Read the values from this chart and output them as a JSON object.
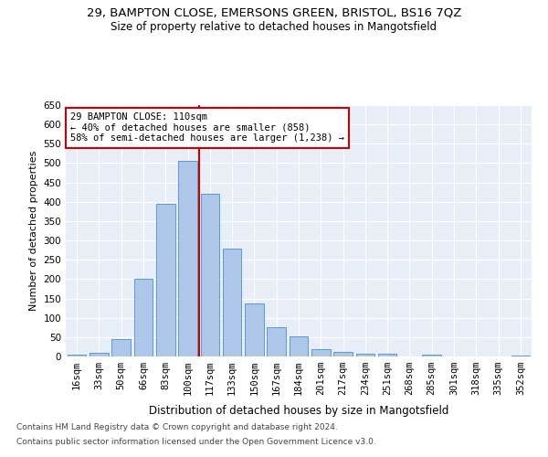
{
  "title1": "29, BAMPTON CLOSE, EMERSONS GREEN, BRISTOL, BS16 7QZ",
  "title2": "Size of property relative to detached houses in Mangotsfield",
  "xlabel": "Distribution of detached houses by size in Mangotsfield",
  "ylabel": "Number of detached properties",
  "bar_labels": [
    "16sqm",
    "33sqm",
    "50sqm",
    "66sqm",
    "83sqm",
    "100sqm",
    "117sqm",
    "133sqm",
    "150sqm",
    "167sqm",
    "184sqm",
    "201sqm",
    "217sqm",
    "234sqm",
    "251sqm",
    "268sqm",
    "285sqm",
    "301sqm",
    "318sqm",
    "335sqm",
    "352sqm"
  ],
  "bar_values": [
    5,
    10,
    45,
    200,
    395,
    505,
    420,
    278,
    138,
    75,
    52,
    20,
    12,
    8,
    8,
    0,
    5,
    0,
    0,
    0,
    3
  ],
  "bar_color": "#aec6e8",
  "bar_edge_color": "#5b9bd5",
  "vline_x": 5.5,
  "vline_color": "#cc0000",
  "annotation_title": "29 BAMPTON CLOSE: 110sqm",
  "annotation_line1": "← 40% of detached houses are smaller (858)",
  "annotation_line2": "58% of semi-detached houses are larger (1,238) →",
  "annotation_box_color": "#ffffff",
  "annotation_box_edge": "#cc0000",
  "ylim": [
    0,
    650
  ],
  "yticks": [
    0,
    50,
    100,
    150,
    200,
    250,
    300,
    350,
    400,
    450,
    500,
    550,
    600,
    650
  ],
  "bg_color": "#e8eef7",
  "footer1": "Contains HM Land Registry data © Crown copyright and database right 2024.",
  "footer2": "Contains public sector information licensed under the Open Government Licence v3.0.",
  "title1_fontsize": 9.5,
  "title2_fontsize": 8.5,
  "xlabel_fontsize": 8.5,
  "ylabel_fontsize": 8,
  "tick_fontsize": 7.5,
  "annotation_fontsize": 7.5,
  "footer_fontsize": 6.5
}
